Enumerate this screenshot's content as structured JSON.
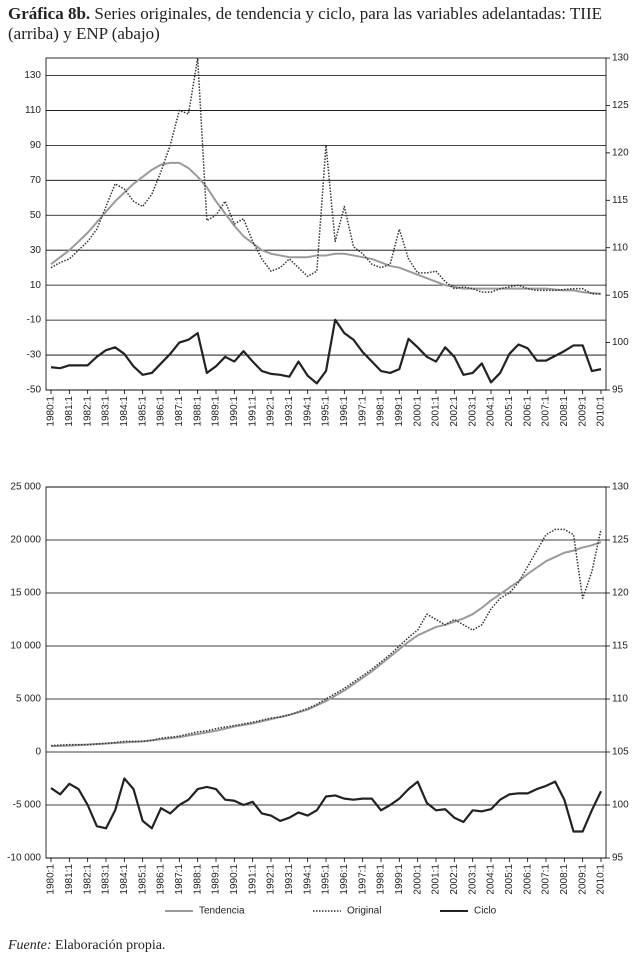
{
  "title_label": "Gráfica 8b.",
  "title": "Series originales, de tendencia y ciclo, para las variables adelantadas: TIIE (arriba) y ENP (abajo)",
  "source_label": "Fuente:",
  "source": "Elaboración propia.",
  "chart_data": [
    {
      "type": "line",
      "categories": [
        "1980:1",
        null,
        "1981:1",
        null,
        "1982:1",
        null,
        "1983:1",
        null,
        "1984:1",
        null,
        "1985:1",
        null,
        "1986:1",
        null,
        "1987:1",
        null,
        "1988:1",
        null,
        "1989:1",
        null,
        "1990:1",
        null,
        "1991:1",
        null,
        "1992:1",
        null,
        "1993:1",
        null,
        "1994:1",
        null,
        "1995:1",
        null,
        "1996:1",
        null,
        "1997:1",
        null,
        "1998:1",
        null,
        "1999:1",
        null,
        "2000:1",
        null,
        "2001:1",
        null,
        "2002:1",
        null,
        "2003:1",
        null,
        "2004:1",
        null,
        "2005:1",
        null,
        "2006:1",
        null,
        "2007:1",
        null,
        "2008:1",
        null,
        "2009:1",
        null,
        "2010:1"
      ],
      "ylim": [
        -50,
        140
      ],
      "yticks": [
        -50,
        -30,
        -10,
        10,
        30,
        50,
        70,
        90,
        110,
        130
      ],
      "y2lim": [
        95,
        130
      ],
      "y2ticks": [
        95,
        100,
        105,
        110,
        115,
        120,
        125,
        130
      ],
      "grid": true,
      "series": [
        {
          "name": "Tendencia",
          "color": "#9a9a9a",
          "line_style": "solid",
          "values": [
            22,
            26,
            30,
            35,
            40,
            46,
            52,
            58,
            63,
            68,
            72,
            76,
            79,
            80,
            80,
            77,
            72,
            66,
            58,
            51,
            44,
            38,
            34,
            30,
            28,
            27,
            26,
            26,
            26,
            27,
            27,
            28,
            28,
            27,
            26,
            25,
            23,
            21,
            20,
            18,
            16,
            14,
            12,
            10,
            9,
            8,
            8,
            8,
            8,
            8,
            8,
            8,
            8,
            8,
            8,
            7.5,
            7,
            7,
            6,
            5.5,
            5
          ]
        },
        {
          "name": "Original",
          "color": "#333333",
          "line_style": "dotted",
          "values": [
            20,
            23,
            25,
            30,
            35,
            42,
            55,
            68,
            65,
            58,
            55,
            62,
            75,
            90,
            110,
            108,
            140,
            47,
            50,
            58,
            45,
            48,
            35,
            25,
            18,
            20,
            25,
            20,
            15,
            18,
            90,
            35,
            55,
            32,
            28,
            22,
            20,
            22,
            42,
            25,
            17,
            17,
            18,
            12,
            8,
            9,
            8,
            6,
            6,
            8,
            9,
            10,
            8,
            7,
            7,
            7,
            7.5,
            8,
            8,
            5,
            5
          ]
        },
        {
          "name": "Ciclo",
          "color": "#222222",
          "line_style": "solid",
          "axis": "y2",
          "values": [
            97.4,
            97.3,
            97.6,
            97.6,
            97.6,
            98.5,
            99.2,
            99.5,
            98.8,
            97.5,
            96.6,
            96.8,
            97.8,
            98.8,
            100,
            100.3,
            101,
            96.8,
            97.5,
            98.5,
            98,
            99.1,
            98,
            97,
            96.7,
            96.6,
            96.4,
            98,
            96.5,
            95.7,
            97,
            102.4,
            101,
            100.3,
            99,
            98,
            97,
            96.8,
            97.2,
            100.4,
            99.5,
            98.5,
            98,
            99.5,
            98.5,
            96.6,
            96.8,
            97.8,
            95.8,
            96.8,
            98.8,
            99.8,
            99.4,
            98.1,
            98.1,
            98.6,
            99.1,
            99.7,
            99.7,
            97,
            97.2
          ]
        }
      ]
    },
    {
      "type": "line",
      "categories": [
        "1980:1",
        null,
        "1981:1",
        null,
        "1982:1",
        null,
        "1983:1",
        null,
        "1984:1",
        null,
        "1985:1",
        null,
        "1986:1",
        null,
        "1987:1",
        null,
        "1988:1",
        null,
        "1989:1",
        null,
        "1990:1",
        null,
        "1991:1",
        null,
        "1992:1",
        null,
        "1993:1",
        null,
        "1994:1",
        null,
        "1995:1",
        null,
        "1996:1",
        null,
        "1997:1",
        null,
        "1998:1",
        null,
        "1999:1",
        null,
        "2000:1",
        null,
        "2001:1",
        null,
        "2002:1",
        null,
        "2003:1",
        null,
        "2004:1",
        null,
        "2005:1",
        null,
        "2006:1",
        null,
        "2007:1",
        null,
        "2008:1",
        null,
        "2009:1",
        null,
        "2010:1"
      ],
      "ylim": [
        -10000,
        25000
      ],
      "yticks": [
        {
          "value": -10000,
          "label": "-10 000"
        },
        {
          "value": -5000,
          "label": "-5 000"
        },
        0,
        {
          "value": 5000,
          "label": "5 000"
        },
        {
          "value": 10000,
          "label": "10 000"
        },
        {
          "value": 15000,
          "label": "15 000"
        },
        {
          "value": 20000,
          "label": "20 000"
        },
        {
          "value": 25000,
          "label": "25 000"
        }
      ],
      "y2lim": [
        95,
        130
      ],
      "y2ticks": [
        95,
        100,
        105,
        110,
        115,
        120,
        125,
        130
      ],
      "grid": true,
      "legend": "bottom",
      "series": [
        {
          "name": "Tendencia",
          "color": "#9a9a9a",
          "line_style": "solid",
          "values": [
            550,
            575,
            600,
            650,
            700,
            750,
            800,
            850,
            900,
            950,
            1000,
            1100,
            1200,
            1300,
            1400,
            1550,
            1700,
            1850,
            2000,
            2200,
            2400,
            2550,
            2700,
            2900,
            3100,
            3300,
            3500,
            3750,
            4000,
            4400,
            4800,
            5300,
            5800,
            6400,
            7000,
            7600,
            8300,
            9000,
            9700,
            10400,
            11000,
            11400,
            11800,
            12000,
            12300,
            12600,
            13000,
            13600,
            14300,
            14900,
            15500,
            16100,
            16800,
            17400,
            18000,
            18400,
            18800,
            19000,
            19300,
            19500,
            19800
          ]
        },
        {
          "name": "Original",
          "color": "#333333",
          "line_style": "dotted",
          "values": [
            600,
            650,
            700,
            700,
            700,
            750,
            800,
            900,
            1000,
            1000,
            1000,
            1100,
            1300,
            1400,
            1500,
            1700,
            1900,
            2000,
            2200,
            2350,
            2500,
            2650,
            2800,
            3000,
            3200,
            3300,
            3500,
            3800,
            4100,
            4500,
            5000,
            5500,
            6000,
            6600,
            7200,
            7800,
            8500,
            9200,
            10000,
            10800,
            11500,
            13000,
            12500,
            12000,
            12500,
            12000,
            11500,
            12000,
            13500,
            14500,
            15000,
            16000,
            17500,
            19000,
            20500,
            21000,
            21000,
            20500,
            14500,
            17000,
            21000
          ]
        },
        {
          "name": "Ciclo",
          "color": "#222222",
          "line_style": "solid",
          "axis": "y2",
          "values": [
            101.6,
            101,
            102,
            101.5,
            100,
            98,
            97.8,
            99.5,
            102.5,
            101.5,
            98.5,
            97.8,
            99.7,
            99.2,
            100,
            100.5,
            101.5,
            101.7,
            101.5,
            100.5,
            100.4,
            100,
            100.3,
            99.2,
            99,
            98.5,
            98.8,
            99.3,
            99,
            99.5,
            100.8,
            100.9,
            100.6,
            100.5,
            100.6,
            100.6,
            99.5,
            100,
            100.6,
            101.5,
            102.2,
            100.2,
            99.5,
            99.6,
            98.8,
            98.4,
            99.5,
            99.4,
            99.6,
            100.5,
            101,
            101.1,
            101.1,
            101.5,
            101.8,
            102.2,
            100.5,
            97.5,
            97.5,
            99.5,
            101.3
          ]
        }
      ]
    }
  ]
}
